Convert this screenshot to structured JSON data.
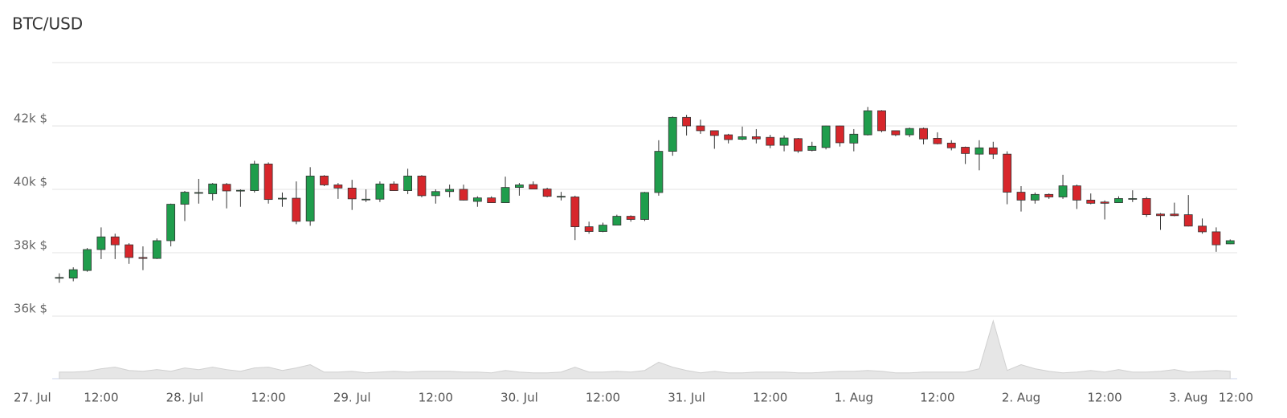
{
  "chart_data": {
    "type": "candlestick",
    "title": "BTC/USD",
    "categories": [
      "27. Jul",
      null,
      null,
      null,
      null,
      null,
      "12:00",
      null,
      null,
      null,
      null,
      null,
      "28. Jul",
      null,
      null,
      null,
      null,
      null,
      "12:00",
      null,
      null,
      null,
      null,
      null,
      "29. Jul",
      null,
      null,
      null,
      null,
      null,
      "12:00",
      null,
      null,
      null,
      null,
      null,
      "30. Jul",
      null,
      null,
      null,
      null,
      null,
      "12:00",
      null,
      null,
      null,
      null,
      null,
      "31. Jul",
      null,
      null,
      null,
      null,
      null,
      "12:00",
      null,
      null,
      null,
      null,
      null,
      "1. Aug",
      null,
      null,
      null,
      null,
      null,
      "12:00",
      null,
      null,
      null,
      null,
      null,
      "2. Aug",
      null,
      null,
      null,
      null,
      null,
      "12:00",
      null,
      null,
      null,
      null,
      null,
      "3. Aug",
      null,
      null,
      null,
      null,
      null,
      "12:00"
    ],
    "open": [
      null,
      null,
      null,
      37200,
      37200,
      37440,
      38100,
      38500,
      38250,
      37850,
      37820,
      38380,
      39530,
      39890,
      39860,
      40160,
      39950,
      39960,
      40800,
      39700,
      39720,
      39000,
      40420,
      40140,
      40040,
      39690,
      39690,
      40170,
      39960,
      40420,
      39800,
      39930,
      40000,
      39620,
      39730,
      39580,
      40060,
      40150,
      40010,
      39780,
      39760,
      38820,
      38670,
      38870,
      39150,
      39050,
      39900,
      41200,
      42270,
      42000,
      41850,
      41720,
      41580,
      41660,
      41640,
      41390,
      41600,
      41230,
      41320,
      42000,
      41460,
      41720,
      42480,
      41850,
      41720,
      41920,
      41610,
      41460,
      41330,
      41110,
      41310,
      41110,
      39910,
      39660,
      39840,
      39760,
      40110,
      39660,
      39600,
      39580,
      39690,
      39710,
      39220,
      39220,
      39200,
      38840,
      38660,
      38280,
      null,
      null,
      null
    ],
    "high": [
      null,
      null,
      null,
      37350,
      37540,
      38150,
      38800,
      38600,
      38300,
      38200,
      38450,
      39550,
      39950,
      40330,
      40200,
      40200,
      40000,
      40900,
      40850,
      39900,
      40250,
      40700,
      40450,
      40200,
      40300,
      40000,
      40250,
      40250,
      40650,
      40450,
      40000,
      40150,
      40150,
      39780,
      39780,
      40400,
      40200,
      40250,
      40050,
      39920,
      39800,
      38980,
      38950,
      39200,
      39180,
      39920,
      41550,
      42300,
      42350,
      42200,
      41850,
      41750,
      41980,
      41900,
      41720,
      41700,
      41620,
      41500,
      42010,
      42010,
      41900,
      42600,
      42500,
      41850,
      41950,
      41950,
      41800,
      41550,
      41350,
      41550,
      41500,
      41200,
      40100,
      39900,
      39870,
      40460,
      40150,
      39870,
      39650,
      39780,
      39970,
      39760,
      39250,
      39580,
      39820,
      39080,
      38800,
      38420,
      null,
      null,
      null
    ],
    "low": [
      null,
      null,
      null,
      37050,
      37100,
      37400,
      37800,
      37800,
      37650,
      37450,
      37800,
      38200,
      39000,
      39550,
      39650,
      39400,
      39450,
      39900,
      39550,
      39450,
      38900,
      38850,
      40100,
      39700,
      39350,
      39600,
      39600,
      39950,
      39850,
      39750,
      39550,
      39750,
      39650,
      39450,
      39580,
      39580,
      39800,
      40000,
      39750,
      39650,
      38400,
      38600,
      38650,
      38870,
      38980,
      39000,
      39800,
      41060,
      41700,
      41750,
      41280,
      41450,
      41550,
      41450,
      41300,
      41200,
      41150,
      41200,
      41260,
      41350,
      41200,
      41700,
      41800,
      41680,
      41650,
      41420,
      41420,
      41230,
      40800,
      40600,
      40960,
      39530,
      39300,
      39550,
      39700,
      39700,
      39380,
      39530,
      39050,
      39580,
      39600,
      39130,
      38720,
      39150,
      38830,
      38600,
      38030,
      38270,
      null,
      null,
      null
    ],
    "close": [
      null,
      null,
      null,
      37220,
      37465,
      38100,
      38500,
      38250,
      37850,
      37820,
      38380,
      39530,
      39910,
      39900,
      40170,
      39950,
      39970,
      40800,
      39680,
      39720,
      38990,
      40420,
      40140,
      40040,
      39700,
      39690,
      40170,
      39960,
      40420,
      39800,
      39930,
      40000,
      39660,
      39730,
      39580,
      40060,
      40140,
      40010,
      39780,
      39780,
      38820,
      38670,
      38870,
      39150,
      39050,
      39900,
      41200,
      42270,
      42000,
      41850,
      41700,
      41570,
      41660,
      41590,
      41390,
      41620,
      41210,
      41360,
      42000,
      41470,
      41740,
      42480,
      41850,
      41720,
      41920,
      41590,
      41440,
      41310,
      41130,
      41310,
      41110,
      39910,
      39660,
      39840,
      39760,
      40110,
      39660,
      39560,
      39560,
      39710,
      39710,
      39200,
      39170,
      39170,
      38840,
      38660,
      38250,
      38380,
      null,
      null,
      null
    ],
    "volume": [
      null,
      null,
      null,
      8,
      8,
      9,
      12,
      14,
      10,
      9,
      11,
      9,
      13,
      11,
      14,
      11,
      9,
      13,
      14,
      10,
      13,
      17,
      8,
      8,
      9,
      7,
      8,
      9,
      8,
      9,
      9,
      9,
      8,
      8,
      7,
      10,
      8,
      7,
      7,
      8,
      14,
      8,
      8,
      9,
      8,
      10,
      20,
      14,
      10,
      7,
      9,
      7,
      7,
      8,
      8,
      8,
      7,
      7,
      8,
      9,
      9,
      10,
      9,
      7,
      7,
      8,
      8,
      8,
      8,
      12,
      70,
      10,
      17,
      12,
      9,
      7,
      8,
      10,
      8,
      11,
      8,
      8,
      9,
      11,
      8,
      9,
      10,
      9,
      null,
      null,
      null
    ],
    "up_color": "#1f9d4c",
    "down_color": "#d7262b",
    "volume_color": "#e6e6e6",
    "ylim": [
      36000,
      44000
    ],
    "yticks": [
      {
        "value": 36000,
        "label": "36k $"
      },
      {
        "value": 38000,
        "label": "38k $"
      },
      {
        "value": 40000,
        "label": "40k $"
      },
      {
        "value": 42000,
        "label": "42k $"
      }
    ],
    "grid": true
  }
}
